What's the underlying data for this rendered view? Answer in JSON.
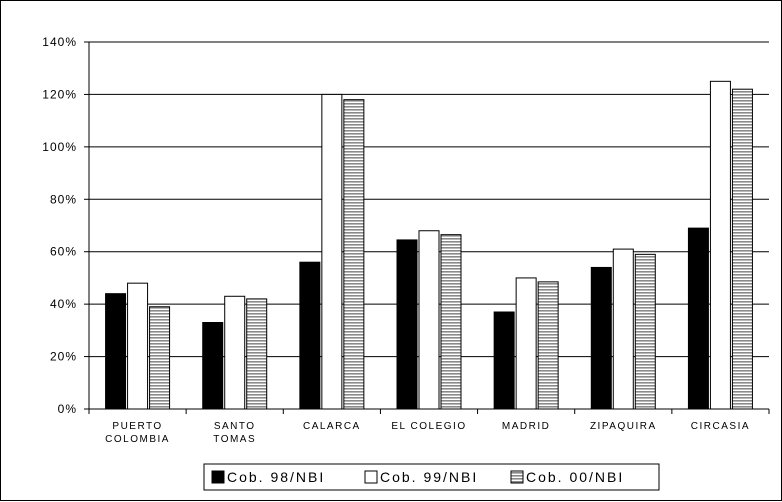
{
  "chart_data": {
    "type": "bar",
    "categories": [
      [
        "PUERTO",
        "COLOMBIA"
      ],
      [
        "SANTO",
        "TOMAS"
      ],
      [
        "CALARCA"
      ],
      [
        "EL COLEGIO"
      ],
      [
        "MADRID"
      ],
      [
        "ZIPAQUIRA"
      ],
      [
        "CIRCASIA"
      ]
    ],
    "series": [
      {
        "name": "Cob. 98/NBI",
        "values": [
          44,
          33,
          56,
          64.5,
          37,
          54,
          69
        ],
        "color": "#000000",
        "pattern": "solid"
      },
      {
        "name": "Cob. 99/NBI",
        "values": [
          48,
          43,
          120,
          68,
          50,
          61,
          125
        ],
        "color": "#ffffff",
        "pattern": "solid"
      },
      {
        "name": "Cob. 00/NBI",
        "values": [
          39,
          42,
          118,
          66.5,
          48.5,
          59,
          122
        ],
        "color": "#999999",
        "pattern": "horizontal-lines"
      }
    ],
    "y_ticks": [
      "0%",
      "20%",
      "40%",
      "60%",
      "80%",
      "100%",
      "120%",
      "140%"
    ],
    "ylim": [
      0,
      140
    ],
    "grid": "horizontal",
    "legend_position": "bottom"
  }
}
